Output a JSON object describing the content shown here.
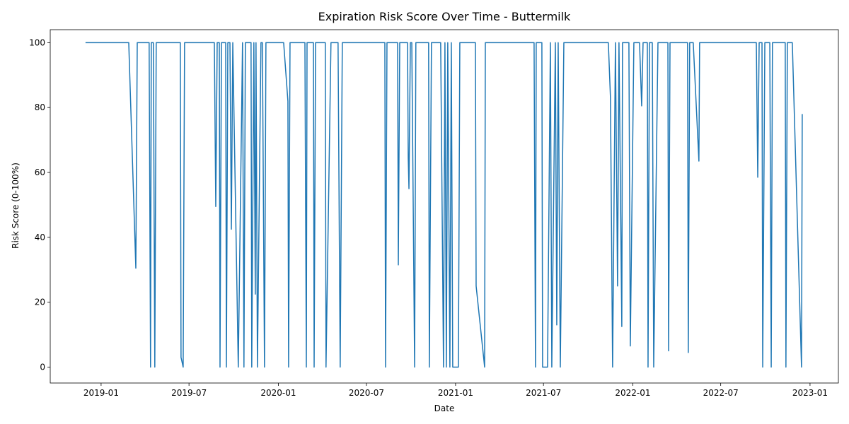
{
  "chart_data": {
    "type": "line",
    "title": "Expiration Risk Score Over Time - Buttermilk",
    "x_label": "Date",
    "y_label": "Risk Score (0-100%)",
    "color": "#1f77b4",
    "grid": false,
    "xlim": [
      2018.713,
      2023.16
    ],
    "xticks": [
      {
        "value": 2019.0,
        "label": "2019-01"
      },
      {
        "value": 2019.496,
        "label": "2019-07"
      },
      {
        "value": 2020.0,
        "label": "2020-01"
      },
      {
        "value": 2020.497,
        "label": "2020-07"
      },
      {
        "value": 2021.0,
        "label": "2021-01"
      },
      {
        "value": 2021.496,
        "label": "2021-07"
      },
      {
        "value": 2022.0,
        "label": "2022-01"
      },
      {
        "value": 2022.496,
        "label": "2022-07"
      },
      {
        "value": 2023.0,
        "label": "2023-01"
      }
    ],
    "ylim": [
      -4.9,
      104
    ],
    "yticks": [
      0,
      20,
      40,
      60,
      80,
      100
    ],
    "x": [
      2018.912,
      2019.156,
      2019.196,
      2019.204,
      2019.271,
      2019.279,
      2019.283,
      2019.295,
      2019.303,
      2019.311,
      2019.447,
      2019.451,
      2019.463,
      2019.471,
      2019.639,
      2019.647,
      2019.655,
      2019.667,
      2019.671,
      2019.679,
      2019.703,
      2019.707,
      2019.715,
      2019.727,
      2019.735,
      2019.743,
      2019.774,
      2019.798,
      2019.806,
      2019.814,
      2019.846,
      2019.85,
      2019.862,
      2019.87,
      2019.874,
      2019.882,
      2019.902,
      2019.91,
      2019.922,
      2019.93,
      2020.03,
      2020.054,
      2020.058,
      2020.066,
      2020.15,
      2020.158,
      2020.162,
      2020.198,
      2020.202,
      2020.21,
      2020.265,
      2020.269,
      2020.297,
      2020.337,
      2020.349,
      2020.361,
      2020.601,
      2020.605,
      2020.613,
      2020.673,
      2020.677,
      2020.685,
      2020.729,
      2020.733,
      2020.737,
      2020.745,
      2020.753,
      2020.769,
      2020.776,
      2020.848,
      2020.852,
      2020.864,
      2020.916,
      2020.932,
      2020.94,
      2020.948,
      2020.956,
      2020.968,
      2020.976,
      2020.984,
      2021.016,
      2021.024,
      2021.112,
      2021.116,
      2021.164,
      2021.168,
      2021.443,
      2021.451,
      2021.455,
      2021.487,
      2021.491,
      2021.519,
      2021.535,
      2021.543,
      2021.563,
      2021.571,
      2021.579,
      2021.591,
      2021.611,
      2021.862,
      2021.874,
      2021.886,
      2021.902,
      2021.914,
      2021.922,
      2021.938,
      2021.942,
      2021.978,
      2021.986,
      2022.006,
      2022.038,
      2022.05,
      2022.058,
      2022.082,
      2022.086,
      2022.094,
      2022.11,
      2022.118,
      2022.142,
      2022.198,
      2022.202,
      2022.21,
      2022.309,
      2022.313,
      2022.321,
      2022.341,
      2022.373,
      2022.377,
      2022.697,
      2022.705,
      2022.713,
      2022.729,
      2022.733,
      2022.745,
      2022.773,
      2022.781,
      2022.788,
      2022.86,
      2022.864,
      2022.872,
      2022.9,
      2022.952,
      2022.956
    ],
    "values": [
      100,
      100,
      30.5,
      100,
      100,
      0,
      100,
      100,
      0,
      100,
      100,
      3,
      0,
      100,
      100,
      49.5,
      100,
      100,
      0,
      100,
      100,
      0,
      100,
      100,
      42.5,
      100,
      0,
      100,
      0,
      100,
      100,
      0,
      100,
      22.5,
      100,
      0,
      100,
      100,
      0,
      100,
      100,
      82,
      0,
      100,
      100,
      0,
      100,
      100,
      0,
      100,
      100,
      0,
      100,
      100,
      0,
      100,
      100,
      0,
      100,
      100,
      31.5,
      100,
      100,
      64.5,
      55,
      100,
      100,
      0,
      100,
      100,
      0,
      100,
      100,
      0,
      100,
      0,
      100,
      0,
      100,
      0,
      0,
      100,
      100,
      25,
      0,
      100,
      100,
      0,
      100,
      100,
      0,
      0,
      100,
      0,
      100,
      13,
      100,
      0,
      100,
      100,
      83,
      0,
      100,
      25,
      100,
      12.5,
      100,
      100,
      6.5,
      100,
      100,
      80.5,
      100,
      100,
      0,
      100,
      100,
      0,
      100,
      100,
      5,
      100,
      100,
      4.5,
      100,
      100,
      63.5,
      100,
      100,
      58.5,
      100,
      100,
      0,
      100,
      100,
      0,
      100,
      100,
      0,
      100,
      100,
      0,
      78
    ]
  }
}
